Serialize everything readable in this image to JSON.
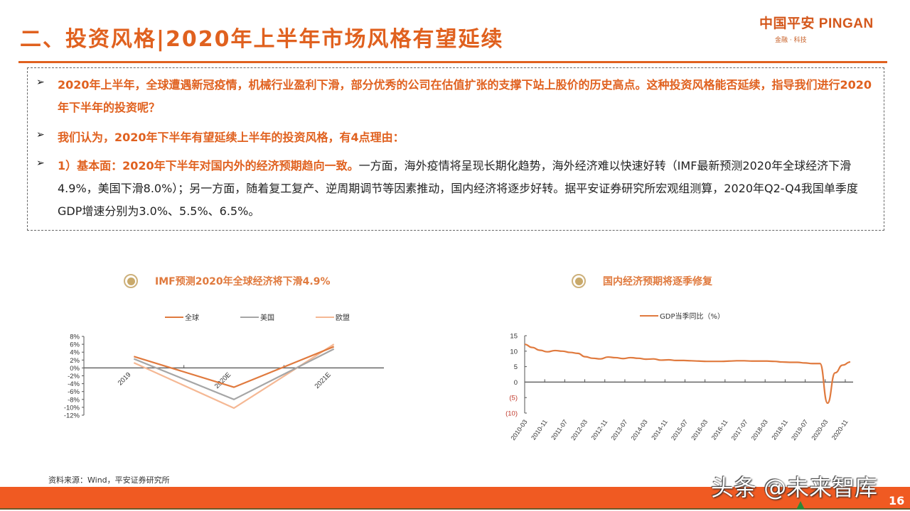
{
  "header": {
    "title": "二、投资风格|2020年上半年市场风格有望延续",
    "logo_main": "中国平安 PINGAN",
    "logo_sub": "金融 · 科技"
  },
  "content": {
    "bullets": [
      {
        "highlight": "2020年上半年，全球遭遇新冠疫情，机械行业盈利下滑，部分优秀的公司在估值扩张的支撑下站上股价的历史高点。这种投资风格能否延续，指导我们进行2020年下半年的投资呢？",
        "body": ""
      },
      {
        "highlight": "我们认为，2020年下半年有望延续上半年的投资风格，有4点理由：",
        "body": ""
      },
      {
        "highlight": "1）基本面：2020年下半年对国内外的经济预期趋向一致。",
        "body": "一方面，海外疫情将呈现长期化趋势，海外经济难以快速好转（IMF最新预测2020年全球经济下滑4.9%，美国下滑8.0%）；另一方面，随着复工复产、逆周期调节等因素推动，国内经济将逐步好转。据平安证券研究所宏观组测算，2020年Q2-Q4我国单季度GDP增速分别为3.0%、5.5%、6.5%。"
      }
    ]
  },
  "chart_data": [
    {
      "type": "line",
      "title": "IMF预测2020年全球经济将下滑4.9%",
      "categories": [
        "2019",
        "2020E",
        "2021E"
      ],
      "series": [
        {
          "name": "全球",
          "color": "#e07a3e",
          "values": [
            2.9,
            -4.9,
            5.4
          ]
        },
        {
          "name": "美国",
          "color": "#a6a6a6",
          "values": [
            2.3,
            -8.0,
            4.8
          ]
        },
        {
          "name": "欧盟",
          "color": "#f5b894",
          "values": [
            1.3,
            -10.2,
            6.0
          ]
        }
      ],
      "yticks": [
        "8%",
        "6%",
        "4%",
        "2%",
        "0%",
        "-2%",
        "-4%",
        "-6%",
        "-8%",
        "-10%",
        "-12%"
      ],
      "ylim": [
        -12,
        8
      ],
      "xlabel": "",
      "ylabel": "",
      "grid": false,
      "legend_position": "top"
    },
    {
      "type": "line",
      "title": "国内经济预期将逐季修复",
      "series": [
        {
          "name": "GDP当季同比（%）",
          "color": "#e07a3e",
          "x": [
            "2010-03",
            "2010-06",
            "2010-09",
            "2010-12",
            "2011-03",
            "2011-06",
            "2011-09",
            "2011-12",
            "2012-03",
            "2012-06",
            "2012-09",
            "2012-12",
            "2013-03",
            "2013-06",
            "2013-09",
            "2013-12",
            "2014-03",
            "2014-06",
            "2014-09",
            "2014-12",
            "2015-03",
            "2015-06",
            "2015-09",
            "2015-12",
            "2016-03",
            "2016-06",
            "2016-09",
            "2016-12",
            "2017-03",
            "2017-06",
            "2017-09",
            "2017-12",
            "2018-03",
            "2018-06",
            "2018-09",
            "2018-12",
            "2019-03",
            "2019-06",
            "2019-09",
            "2019-12",
            "2020-03",
            "2020-06",
            "2020-09",
            "2020-12"
          ],
          "values": [
            12.2,
            11.2,
            10.3,
            9.8,
            10.2,
            10.0,
            9.6,
            9.3,
            8.2,
            7.7,
            7.5,
            8.1,
            7.9,
            7.6,
            7.9,
            7.7,
            7.4,
            7.5,
            7.1,
            7.2,
            7.0,
            7.0,
            6.9,
            6.8,
            6.7,
            6.7,
            6.7,
            6.8,
            6.9,
            6.9,
            6.8,
            6.8,
            6.8,
            6.7,
            6.5,
            6.4,
            6.4,
            6.2,
            6.0,
            6.0,
            -6.8,
            3.0,
            5.5,
            6.5
          ]
        }
      ],
      "xticks": [
        "2010-03",
        "2010-11",
        "2011-07",
        "2012-03",
        "2012-11",
        "2013-07",
        "2014-03",
        "2014-11",
        "2015-07",
        "2016-03",
        "2016-11",
        "2017-07",
        "2018-03",
        "2018-11",
        "2019-07",
        "2020-03",
        "2020-11"
      ],
      "yticks": [
        "15",
        "10",
        "5",
        "0",
        "(5)",
        "(10)"
      ],
      "ylim": [
        -10,
        15
      ],
      "negative_tick_color": "#c0392b",
      "xlabel": "",
      "ylabel": "",
      "grid": false,
      "legend_position": "top"
    }
  ],
  "footer": {
    "source": "资料来源：Wind，平安证券研究所",
    "watermark": "头条 @未来智库",
    "page": "16"
  },
  "colors": {
    "accent": "#e0611f",
    "footer_bar": "#f05a22"
  }
}
